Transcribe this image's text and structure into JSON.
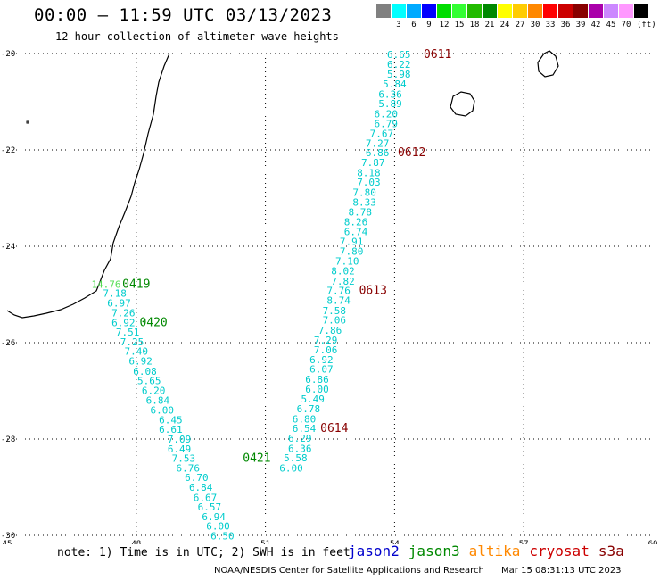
{
  "title": "00:00 – 11:59 UTC 03/13/2023",
  "subtitle": "12 hour collection of altimeter wave heights",
  "legend": {
    "unit": "(ft)",
    "bins": [
      {
        "color": "#808080",
        "label": ""
      },
      {
        "color": "#00ffff",
        "label": "3"
      },
      {
        "color": "#00aaff",
        "label": "6"
      },
      {
        "color": "#0000ff",
        "label": "9"
      },
      {
        "color": "#00dd00",
        "label": "12"
      },
      {
        "color": "#33ff33",
        "label": "15"
      },
      {
        "color": "#22bb00",
        "label": "18"
      },
      {
        "color": "#008800",
        "label": "21"
      },
      {
        "color": "#ffff00",
        "label": "24"
      },
      {
        "color": "#ffcc00",
        "label": "27"
      },
      {
        "color": "#ff8800",
        "label": "30"
      },
      {
        "color": "#ff0000",
        "label": "33"
      },
      {
        "color": "#cc0000",
        "label": "36"
      },
      {
        "color": "#880000",
        "label": "39"
      },
      {
        "color": "#aa00aa",
        "label": "42"
      },
      {
        "color": "#cc88ff",
        "label": "45"
      },
      {
        "color": "#ff99ff",
        "label": "70"
      },
      {
        "color": "#000000",
        "label": ""
      }
    ]
  },
  "map": {
    "lon_range": [
      45,
      60
    ],
    "lat_range": [
      -30,
      -20
    ],
    "lon_ticks": [
      45,
      48,
      51,
      54,
      57,
      60
    ],
    "lat_ticks": [
      -20,
      -22,
      -24,
      -26,
      -28,
      -30
    ],
    "color_cyan": "#00cccc",
    "color_light_green": "#55dd55",
    "color_time_jason3": "#008800",
    "color_time_cryosat": "#880000"
  },
  "tracks": [
    {
      "name": "jason3-pass",
      "points": [
        {
          "lon": 47.3,
          "lat": -24.79,
          "swh": "14.76",
          "c": "green"
        },
        {
          "lon": 47.5,
          "lat": -24.97,
          "swh": "7.18"
        },
        {
          "lon": 47.6,
          "lat": -25.18,
          "swh": "6.97"
        },
        {
          "lon": 47.7,
          "lat": -25.38,
          "swh": "7.26"
        },
        {
          "lon": 47.7,
          "lat": -25.58,
          "swh": "6.92"
        },
        {
          "lon": 47.8,
          "lat": -25.78,
          "swh": "7.51"
        },
        {
          "lon": 47.9,
          "lat": -25.98,
          "swh": "7.25"
        },
        {
          "lon": 48.0,
          "lat": -26.18,
          "swh": "7.40"
        },
        {
          "lon": 48.1,
          "lat": -26.38,
          "swh": "6.92"
        },
        {
          "lon": 48.2,
          "lat": -26.59,
          "swh": "6.08"
        },
        {
          "lon": 48.3,
          "lat": -26.79,
          "swh": "5.65"
        },
        {
          "lon": 48.4,
          "lat": -26.99,
          "swh": "6.20"
        },
        {
          "lon": 48.5,
          "lat": -27.19,
          "swh": "6.84"
        },
        {
          "lon": 48.6,
          "lat": -27.4,
          "swh": "6.00"
        },
        {
          "lon": 48.8,
          "lat": -27.6,
          "swh": "6.45"
        },
        {
          "lon": 48.8,
          "lat": -27.8,
          "swh": "6.61"
        },
        {
          "lon": 49.0,
          "lat": -28.0,
          "swh": "7.09"
        },
        {
          "lon": 49.0,
          "lat": -28.2,
          "swh": "6.49"
        },
        {
          "lon": 49.1,
          "lat": -28.4,
          "swh": "7.53"
        },
        {
          "lon": 49.2,
          "lat": -28.6,
          "swh": "6.76"
        },
        {
          "lon": 49.4,
          "lat": -28.8,
          "swh": "6.70"
        },
        {
          "lon": 49.5,
          "lat": -29.0,
          "swh": "6.84"
        },
        {
          "lon": 49.6,
          "lat": -29.21,
          "swh": "6.67"
        },
        {
          "lon": 49.7,
          "lat": -29.41,
          "swh": "6.57"
        },
        {
          "lon": 49.8,
          "lat": -29.61,
          "swh": "6.94"
        },
        {
          "lon": 49.9,
          "lat": -29.81,
          "swh": "6.00"
        },
        {
          "lon": 50.0,
          "lat": -30.01,
          "swh": "6.50"
        }
      ],
      "times": [
        {
          "lon": 48.0,
          "lat": -24.79,
          "text": "0419",
          "c": "jason3"
        },
        {
          "lon": 48.4,
          "lat": -25.58,
          "text": "0420",
          "c": "jason3"
        },
        {
          "lon": 50.8,
          "lat": -28.4,
          "text": "0421",
          "c": "jason3"
        }
      ]
    },
    {
      "name": "cryosat-pass",
      "points": [
        {
          "lon": 54.1,
          "lat": -20.02,
          "swh": "6.65"
        },
        {
          "lon": 54.1,
          "lat": -20.22,
          "swh": "6.22"
        },
        {
          "lon": 54.1,
          "lat": -20.43,
          "swh": "5.98"
        },
        {
          "lon": 54.0,
          "lat": -20.63,
          "swh": "5.84"
        },
        {
          "lon": 53.9,
          "lat": -20.84,
          "swh": "6.36"
        },
        {
          "lon": 53.9,
          "lat": -21.04,
          "swh": "5.89"
        },
        {
          "lon": 53.8,
          "lat": -21.25,
          "swh": "6.20"
        },
        {
          "lon": 53.8,
          "lat": -21.45,
          "swh": "6.79"
        },
        {
          "lon": 53.7,
          "lat": -21.66,
          "swh": "7.67"
        },
        {
          "lon": 53.6,
          "lat": -21.86,
          "swh": "7.27"
        },
        {
          "lon": 53.6,
          "lat": -22.06,
          "swh": "6.86"
        },
        {
          "lon": 53.5,
          "lat": -22.26,
          "swh": "7.87"
        },
        {
          "lon": 53.4,
          "lat": -22.47,
          "swh": "8.18"
        },
        {
          "lon": 53.4,
          "lat": -22.67,
          "swh": "7.03"
        },
        {
          "lon": 53.3,
          "lat": -22.88,
          "swh": "7.80"
        },
        {
          "lon": 53.3,
          "lat": -23.08,
          "swh": "8.33"
        },
        {
          "lon": 53.2,
          "lat": -23.29,
          "swh": "8.78"
        },
        {
          "lon": 53.1,
          "lat": -23.49,
          "swh": "8.26"
        },
        {
          "lon": 53.1,
          "lat": -23.69,
          "swh": "6.74"
        },
        {
          "lon": 53.0,
          "lat": -23.9,
          "swh": "7.91"
        },
        {
          "lon": 53.0,
          "lat": -24.1,
          "swh": "7.80"
        },
        {
          "lon": 52.9,
          "lat": -24.31,
          "swh": "7.10"
        },
        {
          "lon": 52.8,
          "lat": -24.51,
          "swh": "8.02"
        },
        {
          "lon": 52.8,
          "lat": -24.72,
          "swh": "7.82"
        },
        {
          "lon": 52.7,
          "lat": -24.92,
          "swh": "7.76"
        },
        {
          "lon": 52.7,
          "lat": -25.12,
          "swh": "8.74"
        },
        {
          "lon": 52.6,
          "lat": -25.33,
          "swh": "7.58"
        },
        {
          "lon": 52.6,
          "lat": -25.53,
          "swh": "7.06"
        },
        {
          "lon": 52.5,
          "lat": -25.74,
          "swh": "7.86"
        },
        {
          "lon": 52.4,
          "lat": -25.94,
          "swh": "7.29"
        },
        {
          "lon": 52.4,
          "lat": -26.15,
          "swh": "7.06"
        },
        {
          "lon": 52.3,
          "lat": -26.35,
          "swh": "6.92"
        },
        {
          "lon": 52.3,
          "lat": -26.55,
          "swh": "6.07"
        },
        {
          "lon": 52.2,
          "lat": -26.76,
          "swh": "6.86"
        },
        {
          "lon": 52.2,
          "lat": -26.96,
          "swh": "6.00"
        },
        {
          "lon": 52.1,
          "lat": -27.17,
          "swh": "5.49"
        },
        {
          "lon": 52.0,
          "lat": -27.37,
          "swh": "6.78"
        },
        {
          "lon": 51.9,
          "lat": -27.58,
          "swh": "6.80"
        },
        {
          "lon": 51.9,
          "lat": -27.78,
          "swh": "6.54"
        },
        {
          "lon": 51.8,
          "lat": -27.98,
          "swh": "6.29"
        },
        {
          "lon": 51.8,
          "lat": -28.19,
          "swh": "6.36"
        },
        {
          "lon": 51.7,
          "lat": -28.39,
          "swh": "5.58"
        },
        {
          "lon": 51.6,
          "lat": -28.6,
          "swh": "6.00"
        }
      ],
      "times": [
        {
          "lon": 55.0,
          "lat": -20.02,
          "text": "0611",
          "c": "cryosat"
        },
        {
          "lon": 54.4,
          "lat": -22.06,
          "text": "0612",
          "c": "cryosat"
        },
        {
          "lon": 53.5,
          "lat": -24.92,
          "text": "0613",
          "c": "cryosat"
        },
        {
          "lon": 52.6,
          "lat": -27.78,
          "text": "0614",
          "c": "cryosat"
        }
      ]
    }
  ],
  "footer": {
    "note": "note: 1) Time is in UTC; 2) SWH is in feet",
    "satellites": [
      {
        "name": "jason2",
        "color": "#0000cc"
      },
      {
        "name": "jason3",
        "color": "#008800"
      },
      {
        "name": "altika",
        "color": "#ff8800"
      },
      {
        "name": "cryosat",
        "color": "#cc0000"
      },
      {
        "name": "s3a",
        "color": "#880000"
      }
    ],
    "credit": "NOAA/NESDIS Center for Satellite Applications and Research",
    "timestamp": "Mar 15 08:31:13 UTC 2023"
  }
}
